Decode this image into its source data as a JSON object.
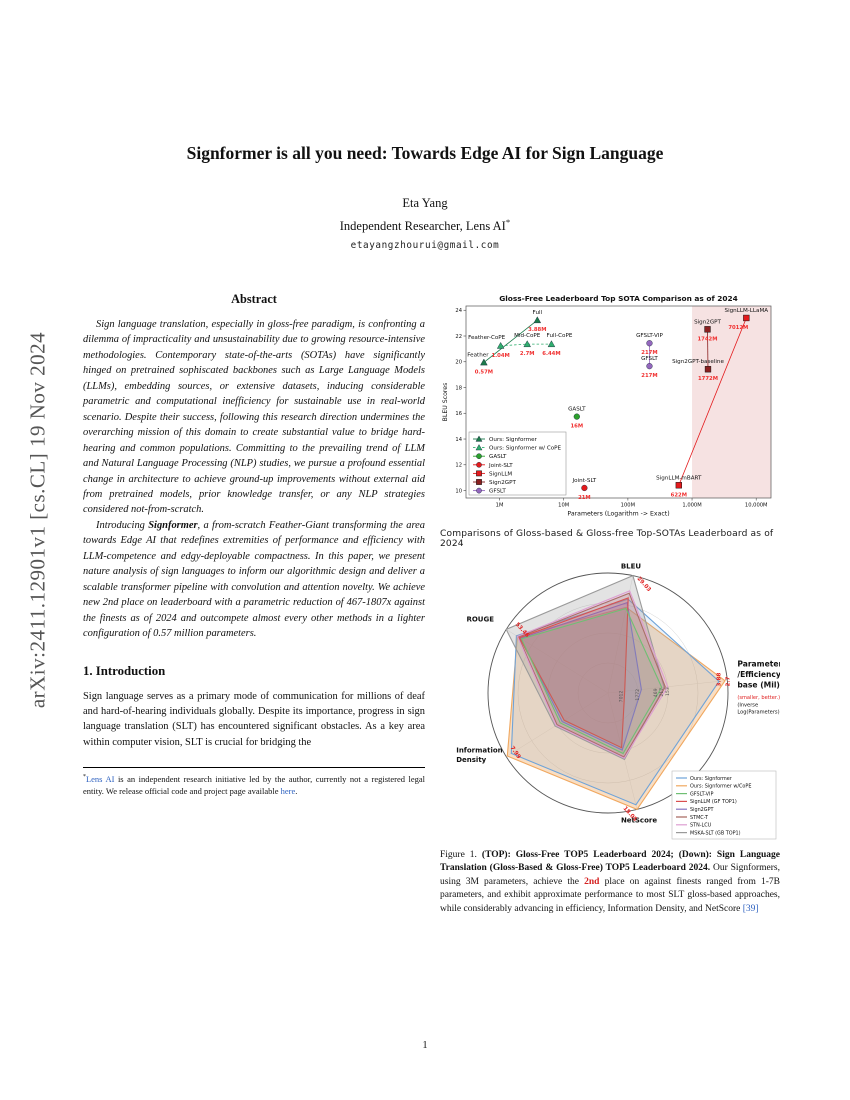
{
  "arxiv_banner": "arXiv:2411.12901v1  [cs.CL]  19 Nov 2024",
  "header": {
    "title": "Signformer is all you need: Towards Edge AI for Sign Language",
    "author": "Eta Yang",
    "affiliation": "Independent Researcher, Lens AI",
    "affiliation_mark": "*",
    "email": "etayangzhourui@gmail.com"
  },
  "abstract": {
    "heading": "Abstract",
    "para1": "Sign language translation, especially in gloss-free paradigm, is confronting a dilemma of impracticality and unsustainability due to growing resource-intensive methodologies. Contemporary state-of-the-arts (SOTAs) have significantly hinged on pretrained sophiscated backbones such as Large Language Models (LLMs), embedding sources, or extensive datasets, inducing considerable parametric and computational inefficiency for sustainable use in real-world scenario. Despite their success, following this research direction undermines the overarching mission of this domain to create substantial value to bridge hard-hearing and common populations. Committing to the prevailing trend of LLM and Natural Language Processing (NLP) studies, we pursue a profound essential change in architecture to achieve ground-up improvements without external aid from pretrained models, prior knowledge transfer, or any NLP strategies considered not-from-scratch.",
    "para2_run1": "Introducing ",
    "para2_bold": "Signformer",
    "para2_run2": ", a from-scratch Feather-Giant transforming the area towards Edge AI that redefines extremities of performance and efficiency with LLM-competence and edgy-deployable compactness. In this paper, we present nature analysis of sign languages to inform our algorithmic design and deliver a scalable transformer pipeline with convolution and attention novelty. We achieve new 2nd place on leaderboard with a parametric reduction of 467-1807x against the finests as of 2024 and outcompete almost every other methods in a lighter configuration of 0.57 million parameters."
  },
  "introduction": {
    "heading": "1. Introduction",
    "para1": "Sign language serves as a primary mode of communication for millions of deaf and hard-of-hearing individuals globally. Despite its importance, progress in sign language translation (SLT) has encountered significant obstacles. As a key area within computer vision, SLT is crucial for bridging the"
  },
  "footnote": {
    "star": "*",
    "link1": "Lens AI",
    "body1": " is an independent research initiative led by the author, currently not a registered legal entity. We release official code and project page available ",
    "link2": "here",
    "end": "."
  },
  "figure": {
    "mid_caption": "Comparisons of Gloss-based & Gloss-free Top-SOTAs Leaderboard as of 2024",
    "caption": {
      "label": "Figure 1. ",
      "bold": "(TOP): Gloss-Free TOP5 Leaderboard 2024; (Down): Sign Language Translation (Gloss-Based & Gloss-Free) TOP5 Leaderboard 2024.",
      "body1": " Our Signformers, using 3M parameters, achieve the ",
      "red": "2nd",
      "body2": " place on against finests ranged from 1-7B parameters, and exhibit approximate performance to most SLT gloss-based approaches, while considerably advancing in efficiency, Information Density, and NetScore ",
      "cite": "[39]"
    }
  },
  "page_number": "1",
  "chart_data": [
    {
      "type": "scatter",
      "title": "Gloss-Free Leaderboard Top SOTA Comparison as of 2024",
      "xlabel": "Parameters (Logarithm -> Exact)",
      "ylabel": "BLEU Scores",
      "x_scale": "log",
      "xlim_m": [
        0.3,
        17000
      ],
      "ylim": [
        9.42,
        24.33
      ],
      "x_ticks": [
        "1M",
        "10M",
        "100M",
        "1,000M",
        "10,000M"
      ],
      "x_tick_values": [
        1,
        10,
        100,
        1000,
        10000
      ],
      "y_ticks": [
        10,
        12,
        14,
        16,
        18,
        20,
        22,
        24
      ],
      "shaded_region": {
        "from_m": 1000,
        "color": "#f6e2e2"
      },
      "series_styles": {
        "signformer": {
          "color": "#1b7a4a",
          "marker": "triangle",
          "dash": ""
        },
        "signformer_cope": {
          "color": "#2fae6e",
          "marker": "triangle",
          "dash": "2.5,2"
        },
        "gaslt": {
          "color": "#2ca02c",
          "marker": "circle",
          "dash": ""
        },
        "joint_slt": {
          "color": "#e31a1c",
          "marker": "circle",
          "dash": ""
        },
        "signllm": {
          "color": "#e31a1c",
          "marker": "square",
          "dash": ""
        },
        "sign2gpt": {
          "color": "#8b2020",
          "marker": "square",
          "dash": ""
        },
        "gfslt": {
          "color": "#9467bd",
          "marker": "circle",
          "dash": ""
        }
      },
      "legend": [
        {
          "label": "Ours: Signformer",
          "series": "signformer"
        },
        {
          "label": "Ours: Signformer w/ CoPE",
          "series": "signformer_cope"
        },
        {
          "label": "GASLT",
          "series": "gaslt"
        },
        {
          "label": "Joint-SLT",
          "series": "joint_slt"
        },
        {
          "label": "SignLLM",
          "series": "signllm"
        },
        {
          "label": "Sign2GPT",
          "series": "sign2gpt"
        },
        {
          "label": "GFSLT",
          "series": "gfslt"
        }
      ],
      "points": [
        {
          "name": "Feather",
          "params_m": 0.57,
          "bleu": 19.95,
          "label": "0.57M",
          "series": "signformer",
          "nx": -6,
          "ny": -6
        },
        {
          "name": "Feather-CoPE",
          "params_m": 1.04,
          "bleu": 21.24,
          "label": "1.04M",
          "series": "signformer_cope",
          "nx": -14,
          "ny": -7
        },
        {
          "name": "Mid-CoPE",
          "params_m": 2.7,
          "bleu": 21.37,
          "label": "2.7M",
          "series": "signformer_cope",
          "ny": -7
        },
        {
          "name": "Full-CoPE",
          "params_m": 6.44,
          "bleu": 21.37,
          "label": "6.44M",
          "series": "signformer_cope",
          "nx": 8,
          "ny": -7
        },
        {
          "name": "Full",
          "params_m": 3.88,
          "bleu": 23.23,
          "label": "3.88M",
          "series": "signformer"
        },
        {
          "name": "GASLT",
          "params_m": 16,
          "bleu": 15.74,
          "label": "16M",
          "series": "gaslt"
        },
        {
          "name": "Joint-SLT",
          "params_m": 21,
          "bleu": 10.2,
          "label": "21M",
          "series": "joint_slt"
        },
        {
          "name": "GFSLT-VIP",
          "params_m": 217,
          "bleu": 21.44,
          "label": "217M",
          "series": "gfslt"
        },
        {
          "name": "GFSLT",
          "params_m": 217,
          "bleu": 19.66,
          "label": "217M",
          "series": "gfslt"
        },
        {
          "name": "Sign2GPT",
          "params_m": 1742,
          "bleu": 22.52,
          "label": "1742M",
          "series": "sign2gpt"
        },
        {
          "name": "Sign2GPT-baseline",
          "params_m": 1772,
          "bleu": 19.42,
          "label": "1772M",
          "series": "sign2gpt",
          "nx": -10
        },
        {
          "name": "SignLLM-mBART",
          "params_m": 622,
          "bleu": 10.41,
          "label": "622M",
          "series": "signllm"
        },
        {
          "name": "SignLLM-LLaMA",
          "params_m": 7012,
          "bleu": 23.4,
          "label": "7012M",
          "series": "signllm",
          "vx": -8
        }
      ],
      "lines": [
        {
          "between": [
            "Feather",
            "Full"
          ],
          "series": "signformer"
        },
        {
          "between": [
            "Feather-CoPE",
            "Mid-CoPE",
            "Full-CoPE"
          ],
          "series": "signformer_cope"
        },
        {
          "between": [
            "GFSLT",
            "GFSLT-VIP"
          ],
          "series": "gfslt"
        },
        {
          "between": [
            "Sign2GPT-baseline",
            "Sign2GPT"
          ],
          "series": "sign2gpt"
        },
        {
          "between": [
            "SignLLM-mBART",
            "SignLLM-LLaMA"
          ],
          "series": "signllm"
        }
      ]
    },
    {
      "type": "radar",
      "axes": [
        {
          "label": "BLEU",
          "value": "29.03"
        },
        {
          "label": "Parameter/Efficiency base (Mil)",
          "lines": [
            "Parameter",
            "/Efficiency",
            "base (Mil)"
          ],
          "sub": [
            "(smaller, better.)",
            "(Inverse",
            "Log(Parameters))"
          ],
          "values": [
            "3.88",
            "2.7"
          ]
        },
        {
          "label": "NetScore",
          "value": "18.05"
        },
        {
          "label": "Information Density",
          "lines": [
            "Information",
            "Density"
          ],
          "value": "7.99"
        },
        {
          "label": "ROUGE",
          "value": "53.46"
        }
      ],
      "rings": [
        0.25,
        0.5,
        0.75,
        1.0
      ],
      "center_labels": [
        {
          "text": "7012",
          "r": 0.12
        },
        {
          "text": "1772",
          "r": 0.26
        },
        {
          "text": "469",
          "r": 0.41
        },
        {
          "text": "217",
          "r": 0.46
        },
        {
          "text": "153",
          "r": 0.51
        }
      ],
      "series": [
        {
          "name": "Ours: Signformer",
          "color": "#6fa3d8",
          "fill_op": 0.14,
          "values": [
            0.8,
            0.93,
            0.96,
            0.95,
            0.9
          ]
        },
        {
          "name": "Ours: Signformer w/CoPE",
          "color": "#f0a860",
          "fill_op": 0.38,
          "values": [
            0.73,
            0.98,
            1.0,
            0.99,
            0.89
          ]
        },
        {
          "name": "GFSLT-VIP",
          "color": "#6fbf73",
          "fill_op": 0.1,
          "values": [
            0.72,
            0.45,
            0.52,
            0.47,
            0.85
          ]
        },
        {
          "name": "SignLLM    (GF TOP1)",
          "color": "#d94f4f",
          "fill_op": 0.2,
          "values": [
            0.81,
            0.14,
            0.47,
            0.43,
            0.87
          ]
        },
        {
          "name": "Sign2GPT",
          "color": "#8674c2",
          "fill_op": 0.2,
          "values": [
            0.77,
            0.28,
            0.49,
            0.45,
            0.86
          ]
        },
        {
          "name": "STMC-T",
          "color": "#a5655c",
          "fill_op": 0.22,
          "values": [
            0.85,
            0.48,
            0.55,
            0.5,
            0.88
          ]
        },
        {
          "name": "STN-LCU",
          "color": "#dd9ed2",
          "fill_op": 0.12,
          "values": [
            0.87,
            0.5,
            0.56,
            0.51,
            0.89
          ]
        },
        {
          "name": "MSKA-SLT  (GB TOP1)",
          "color": "#9a9a9a",
          "fill_op": 0.28,
          "values": [
            1.0,
            0.47,
            0.57,
            0.52,
            1.0
          ]
        }
      ],
      "draw_order": [
        1,
        0,
        7,
        5,
        6,
        4,
        3,
        2
      ],
      "legend_position": "bottom-right"
    }
  ]
}
